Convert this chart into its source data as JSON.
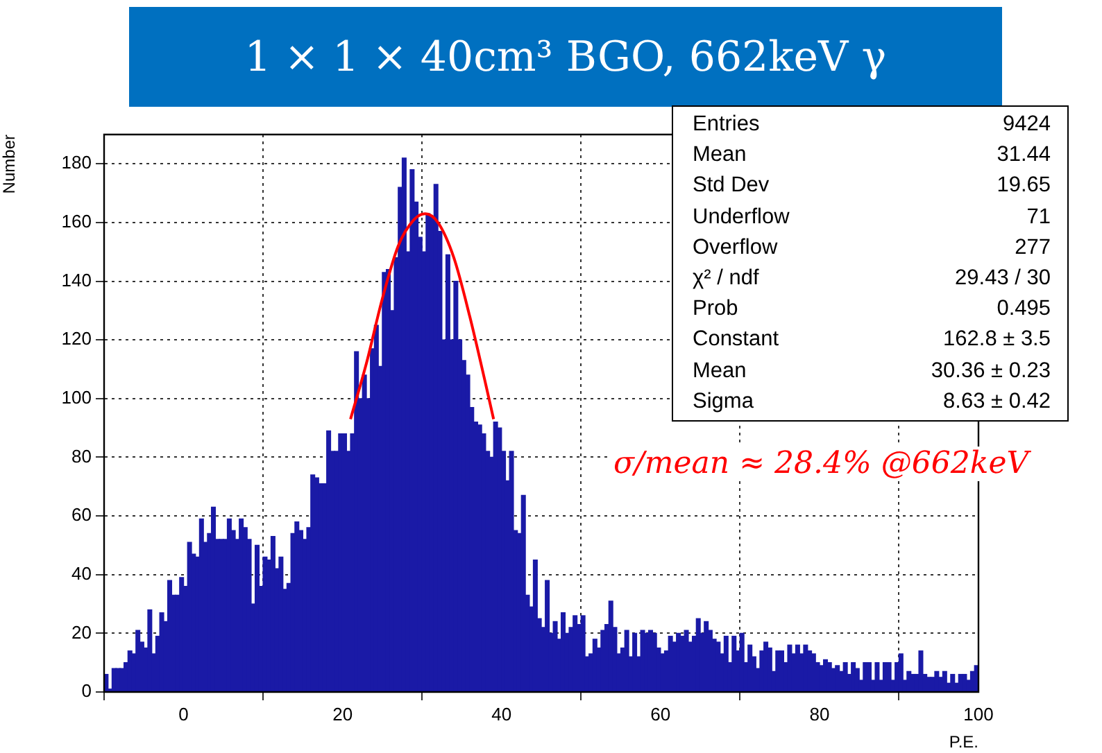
{
  "chart_data": {
    "type": "histogram",
    "title": "1 × 1 × 40cm³ BGO, 662keV γ",
    "xlabel": "P.E.",
    "ylabel": "Number",
    "bins": [
      -10,
      -9.5,
      -9,
      -8.5,
      -8,
      -7.5,
      -7,
      -6.5,
      -6,
      -5.5,
      -5,
      -4.5,
      -4,
      -3.5,
      -3,
      -2.5,
      -2,
      -1.5,
      -1,
      -0.5,
      0,
      0.5,
      1,
      1.5,
      2,
      2.5,
      3,
      3.5,
      4,
      4.5,
      5,
      5.5,
      6,
      6.5,
      7,
      7.5,
      8,
      8.5,
      9,
      9.5,
      10,
      10.5,
      11,
      11.5,
      12,
      12.5,
      13,
      13.5,
      14,
      14.5,
      15,
      15.5,
      16,
      16.5,
      17,
      17.5,
      18,
      18.5,
      19,
      19.5,
      20,
      20.5,
      21,
      21.5,
      22,
      22.5,
      23,
      23.5,
      24,
      24.5,
      25,
      25.5,
      26,
      26.5,
      27,
      27.5,
      28,
      28.5,
      29,
      29.5,
      30,
      30.5,
      31,
      31.5,
      32,
      32.5,
      33,
      33.5,
      34,
      34.5,
      35,
      35.5,
      36,
      36.5,
      37,
      37.5,
      38,
      38.5,
      39,
      39.5,
      40,
      40.5,
      41,
      41.5,
      42,
      42.5,
      43,
      43.5,
      44,
      44.5,
      45,
      45.5,
      46,
      46.5,
      47,
      47.5,
      48,
      48.5,
      49,
      49.5,
      50,
      50.5,
      51,
      51.5,
      52,
      52.5,
      53,
      53.5,
      54,
      54.5,
      55,
      55.5,
      56,
      56.5,
      57,
      57.5,
      58,
      58.5,
      59,
      59.5,
      60,
      60.5,
      61,
      61.5,
      62,
      62.5,
      63,
      63.5,
      64,
      64.5,
      65,
      65.5,
      66,
      66.5,
      67,
      67.5,
      68,
      68.5,
      69,
      69.5,
      70,
      70.5,
      71,
      71.5,
      72,
      72.5,
      73,
      73.5,
      74,
      74.5,
      75,
      75.5,
      76,
      76.5,
      77,
      77.5,
      78,
      78.5,
      79,
      79.5,
      80,
      80.5,
      81,
      81.5,
      82,
      82.5,
      83,
      83.5,
      84,
      84.5,
      85,
      85.5,
      86,
      86.5,
      87,
      87.5,
      88,
      88.5,
      89,
      89.5,
      90,
      90.5,
      91,
      91.5,
      92,
      92.5,
      93,
      93.5,
      94,
      94.5,
      95,
      95.5,
      96,
      96.5,
      97,
      97.5,
      98,
      98.5,
      99,
      99.5,
      100
    ],
    "values": [
      6,
      1,
      8,
      8,
      8,
      10,
      14,
      13,
      21,
      17,
      15,
      28,
      13,
      19,
      27,
      24,
      38,
      33,
      33,
      39,
      36,
      51,
      47,
      46,
      59,
      51,
      54,
      63,
      52,
      52,
      52,
      59,
      55,
      52,
      59,
      56,
      52,
      30,
      50,
      36,
      46,
      45,
      53,
      42,
      46,
      35,
      37,
      54,
      58,
      55,
      52,
      56,
      74,
      73,
      71,
      71,
      89,
      82,
      82,
      88,
      88,
      82,
      88,
      116,
      100,
      108,
      100,
      117,
      125,
      111,
      143,
      144,
      130,
      148,
      172,
      182,
      150,
      178,
      167,
      155,
      150,
      163,
      162,
      173,
      157,
      120,
      149,
      120,
      140,
      120,
      113,
      108,
      97,
      92,
      91,
      88,
      82,
      80,
      92,
      90,
      82,
      72,
      82,
      55,
      54,
      67,
      33,
      29,
      45,
      25,
      22,
      38,
      20,
      24,
      18,
      27,
      20,
      22,
      26,
      23,
      26,
      12,
      13,
      18,
      15,
      21,
      23,
      31,
      22,
      13,
      15,
      21,
      12,
      20,
      12,
      21,
      20,
      21,
      20,
      15,
      13,
      14,
      19,
      17,
      20,
      19,
      21,
      17,
      19,
      25,
      20,
      24,
      21,
      18,
      17,
      13,
      19,
      10,
      19,
      14,
      20,
      10,
      16,
      12,
      8,
      14,
      17,
      15,
      7,
      14,
      14,
      10,
      16,
      13,
      16,
      13,
      16,
      14,
      13,
      10,
      9,
      11,
      10,
      8,
      9,
      7,
      10,
      6,
      10,
      8,
      4,
      10,
      10,
      4,
      10,
      4,
      10,
      10,
      4,
      10,
      13,
      4,
      7,
      6,
      6,
      14,
      6,
      5,
      5,
      7,
      5,
      7,
      3,
      6,
      3,
      6,
      6,
      4,
      7,
      9
    ],
    "color": "#1a1aa6",
    "series": [
      {
        "type": "line",
        "x": [
          21,
          23,
          25,
          27,
          29,
          30.4,
          32,
          34,
          36,
          38,
          39
        ],
        "values": [
          93,
          112,
          134,
          152,
          161,
          163,
          160,
          148,
          128,
          105,
          93
        ],
        "color": "#ff0000"
      }
    ],
    "xlim": [
      -10,
      100
    ],
    "xticks": [
      0,
      20,
      40,
      60,
      80,
      100
    ],
    "ylim": [
      0,
      190
    ],
    "yticks": [
      0,
      20,
      40,
      60,
      80,
      100,
      120,
      140,
      160,
      180
    ],
    "grid": true,
    "legend": false,
    "marker": "none",
    "annotations": [
      "Entries\t9424",
      "Mean\t31.44",
      "Std Dev\t19.65",
      "Underflow\t71",
      "Overflow\t277",
      "χ² / ndf\t29.43 / 30",
      "Prob\t0.495",
      "Constant\t162.8 ± 3.5",
      "Mean\t30.36 ± 0.23",
      "Sigma\t8.63 ± 0.42",
      "σ/mean ≈ 28.4% @662keV"
    ]
  }
}
